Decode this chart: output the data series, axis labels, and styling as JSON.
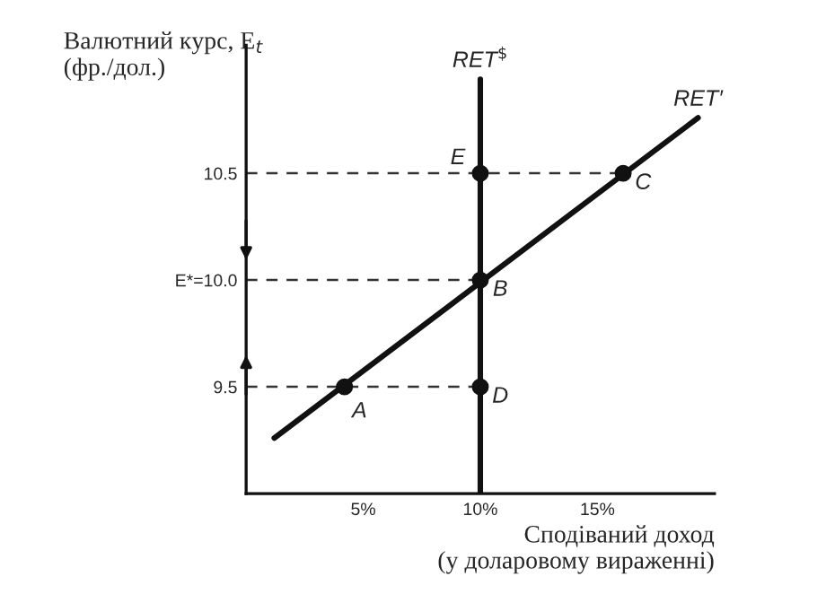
{
  "chart_data": {
    "type": "line",
    "xlabel": "Сподіваний доход\n(у доларовому вираженні)",
    "ylabel": "Валютний курс, E$_{t}$\n(фр./дол.)",
    "xlim": [
      0,
      20
    ],
    "ylim": [
      9.0,
      11.1
    ],
    "xticks": [
      {
        "value": 5,
        "label": "5%"
      },
      {
        "value": 10,
        "label": "10%"
      },
      {
        "value": 15,
        "label": "15%"
      }
    ],
    "yticks": [
      9.5,
      {
        "value": 10.0,
        "label": "E*=10.0"
      },
      10.5
    ],
    "grid": false,
    "legend": false,
    "series": [
      {
        "type": "line",
        "x": [
          0,
          16.1
        ],
        "values": [
          10.5,
          10.5
        ],
        "color": "#333333",
        "line_style": "dashed",
        "marker": "none"
      },
      {
        "type": "line",
        "x": [
          0,
          10
        ],
        "values": [
          10.0,
          10.0
        ],
        "color": "#333333",
        "line_style": "dashed",
        "marker": "none"
      },
      {
        "type": "line",
        "x": [
          0,
          10
        ],
        "values": [
          9.5,
          9.5
        ],
        "color": "#333333",
        "line_style": "dashed",
        "marker": "none"
      },
      {
        "type": "line",
        "name": "RET$^{$}$",
        "x": [
          10,
          10
        ],
        "values": [
          9.0,
          10.94
        ],
        "color": "#111111",
        "line_style": "solid",
        "marker": "none"
      },
      {
        "type": "line",
        "name": "RET′",
        "x": [
          1.2,
          19.3
        ],
        "values": [
          9.26,
          10.76
        ],
        "color": "#111111",
        "line_style": "solid",
        "marker": "none"
      },
      {
        "type": "scatter",
        "x": [
          4.2,
          10,
          16.1,
          10,
          10
        ],
        "values": [
          9.5,
          10.0,
          10.5,
          9.5,
          10.5
        ],
        "color": "#111111",
        "marker": "circle"
      }
    ],
    "annotations": [
      {
        "text": "A",
        "x": 4.2,
        "y": 9.5
      },
      {
        "text": "B",
        "x": 10,
        "y": 10.0
      },
      {
        "text": "C",
        "x": 16.1,
        "y": 10.5
      },
      {
        "text": "D",
        "x": 10,
        "y": 9.5
      },
      {
        "text": "E",
        "x": 10,
        "y": 10.5
      }
    ]
  }
}
